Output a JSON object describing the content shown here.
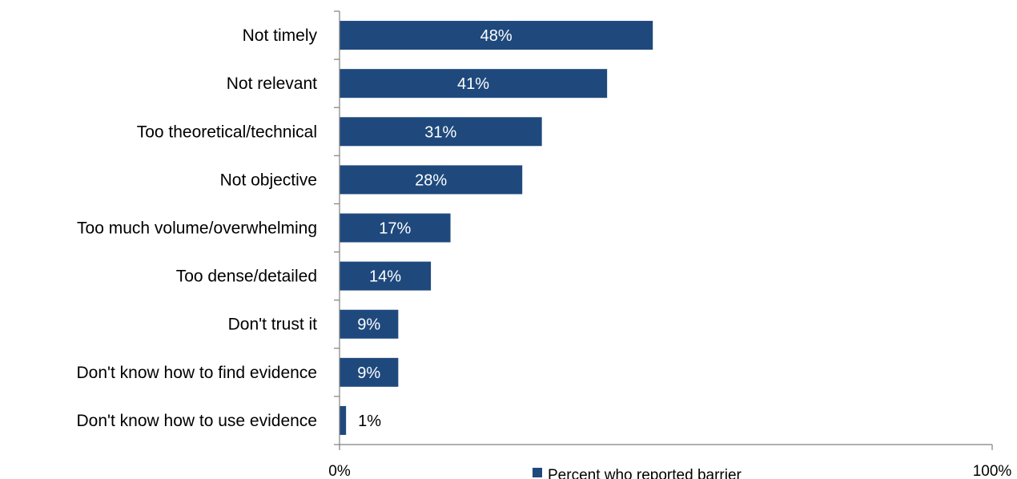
{
  "chart_data": {
    "type": "bar",
    "orientation": "horizontal",
    "categories": [
      "Not timely",
      "Not relevant",
      "Too theoretical/technical",
      "Not objective",
      "Too much volume/overwhelming",
      "Too dense/detailed",
      "Don't trust it",
      "Don't know how to find evidence",
      "Don't know how to use evidence"
    ],
    "series": [
      {
        "name": "Percent who reported barrier",
        "values": [
          48,
          41,
          31,
          28,
          17,
          14,
          9,
          9,
          1
        ],
        "color": "#1F497D"
      }
    ],
    "data_labels": [
      "48%",
      "41%",
      "31%",
      "28%",
      "17%",
      "14%",
      "9%",
      "9%",
      "1%"
    ],
    "xlim": [
      0,
      100
    ],
    "x_tick_labels": [
      "0%",
      "100%"
    ],
    "grid": false,
    "legend_position": "bottom"
  }
}
